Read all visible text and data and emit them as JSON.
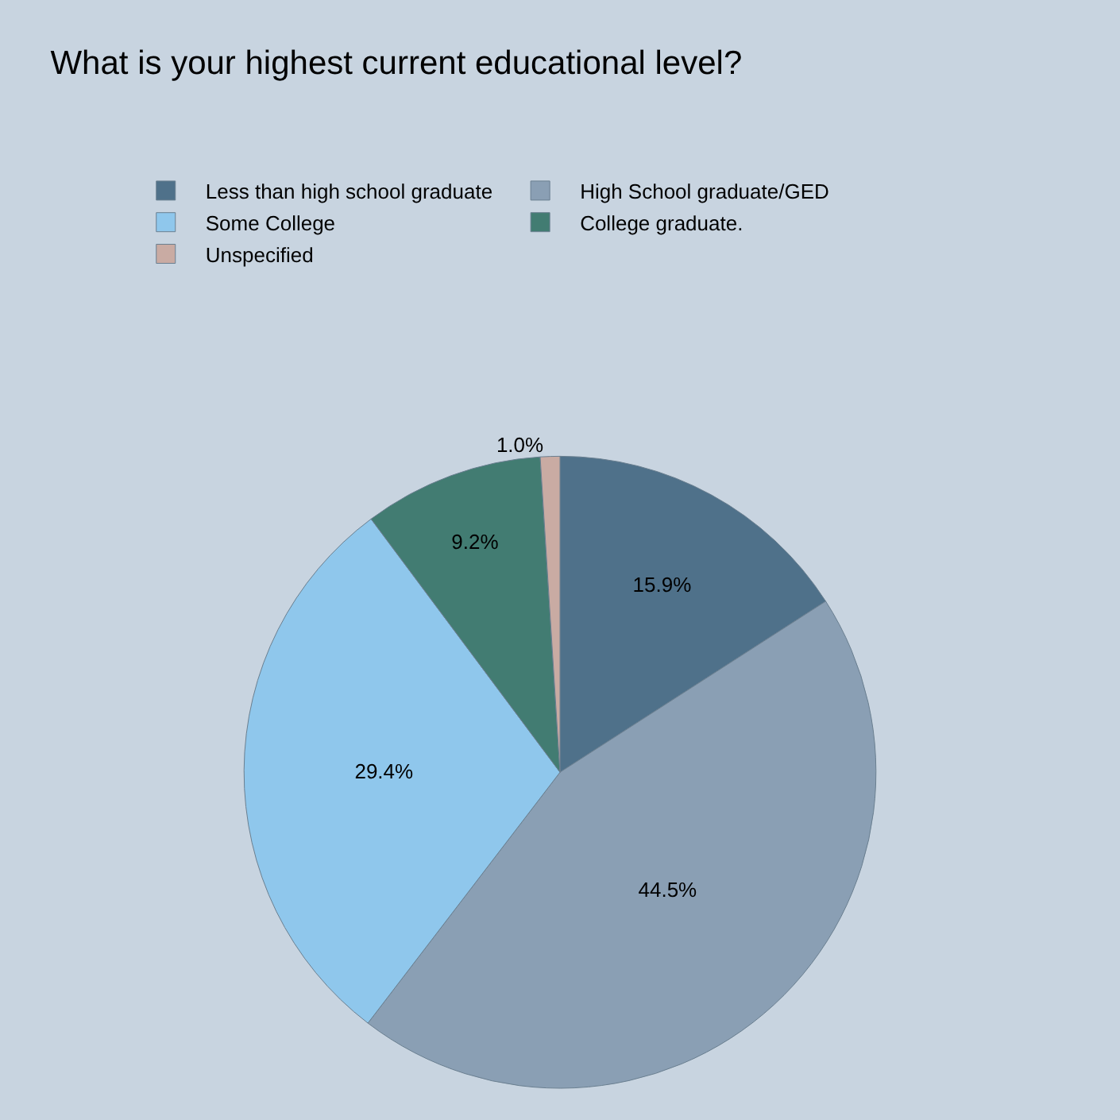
{
  "chart_data": {
    "type": "pie",
    "title": "What is your highest current educational level?",
    "categories": [
      "Less than high school graduate",
      "High School graduate/GED",
      "Some College",
      "College graduate.",
      "Unspecified"
    ],
    "values": [
      15.9,
      44.5,
      29.4,
      9.2,
      1.0
    ],
    "value_labels": [
      "15.9%",
      "44.5%",
      "29.4%",
      "9.2%",
      "1.0%"
    ],
    "colors": [
      "#4f718a",
      "#8a9fb4",
      "#8fc7ec",
      "#427c72",
      "#c9aba3"
    ],
    "legend": "top"
  }
}
